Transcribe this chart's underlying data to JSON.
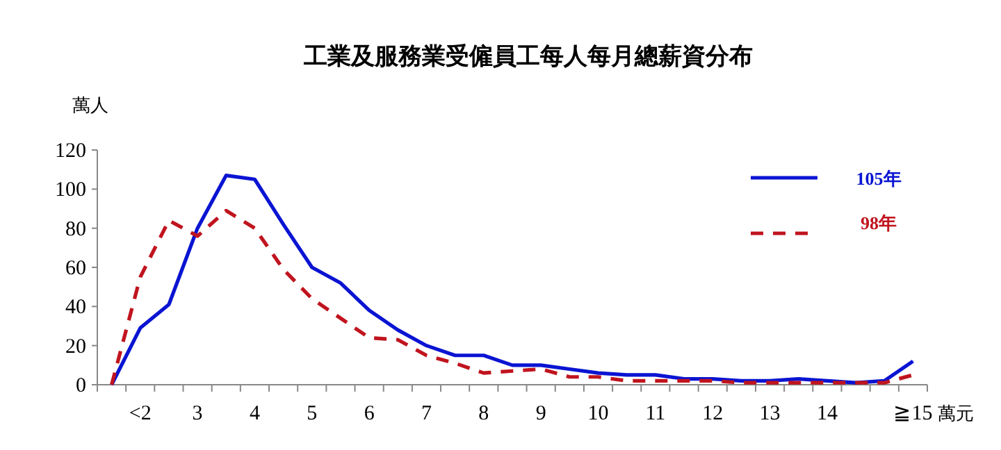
{
  "chart_data": {
    "type": "line",
    "title": "工業及服務業受僱員工每人每月總薪資分布",
    "ylabel": "萬人",
    "xlabel": "萬元",
    "categories": [
      null,
      "<2",
      null,
      "3",
      null,
      "4",
      null,
      "5",
      null,
      "6",
      null,
      "7",
      null,
      "8",
      null,
      "9",
      null,
      "10",
      null,
      "11",
      null,
      "12",
      null,
      "13",
      null,
      "14",
      null,
      null,
      "≧15"
    ],
    "series": [
      {
        "name": "105年",
        "color": "#0a14d2",
        "line_style": "solid",
        "values": [
          0,
          29,
          41,
          80,
          107,
          105,
          82,
          60,
          52,
          38,
          28,
          20,
          15,
          15,
          10,
          10,
          8,
          6,
          5,
          5,
          3,
          3,
          2,
          2,
          3,
          2,
          1,
          2,
          12
        ]
      },
      {
        "name": "98年",
        "color": "#c0141e",
        "line_style": "dashed",
        "values": [
          0,
          55,
          84,
          76,
          89,
          80,
          59,
          44,
          34,
          24,
          23,
          15,
          11,
          6,
          7,
          8,
          4,
          4,
          2,
          2,
          2,
          2,
          1,
          1,
          1,
          1,
          1,
          1,
          5
        ]
      }
    ],
    "ylim": [
      0,
      120
    ],
    "yticks": [
      0,
      20,
      40,
      60,
      80,
      100,
      120
    ],
    "grid": false,
    "legend": "top right",
    "marker": "none"
  }
}
